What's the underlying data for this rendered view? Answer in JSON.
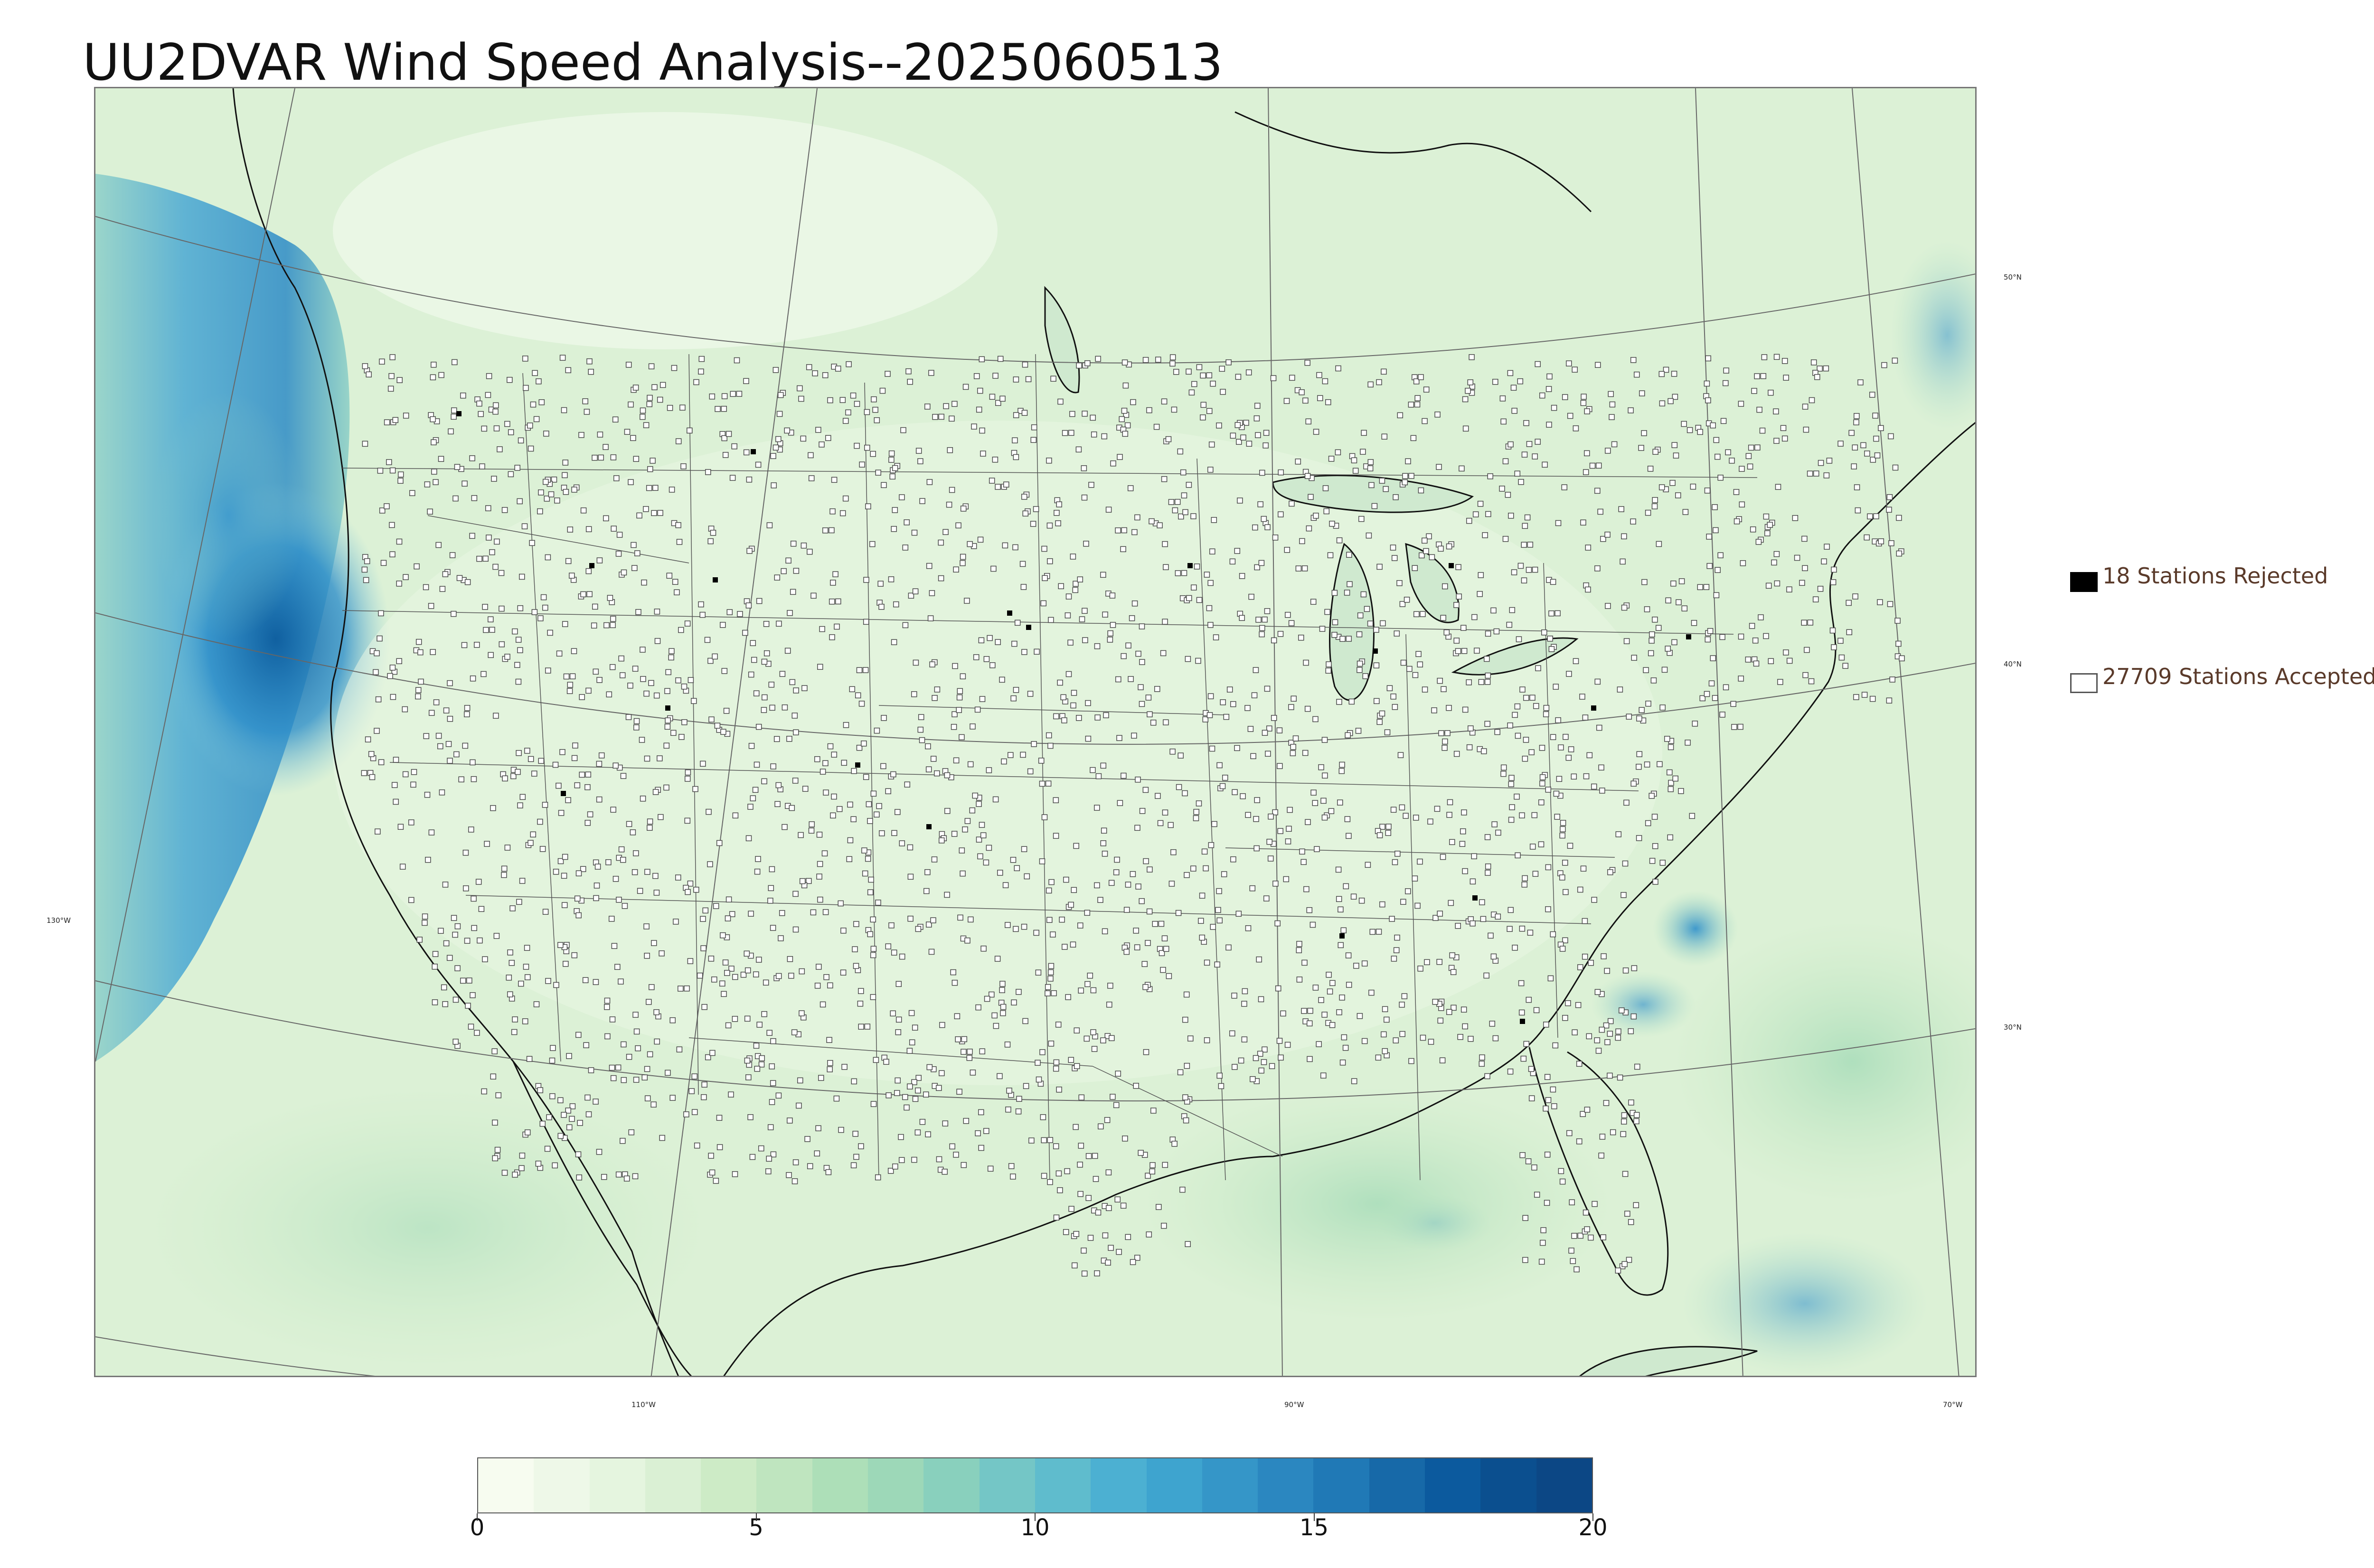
{
  "title": "UU2DVAR Wind Speed Analysis--2025060513",
  "map": {
    "graticule_labels": {
      "lat_50": "50°N",
      "lat_40": "40°N",
      "lat_30": "30°N",
      "lon_130": "130°W",
      "lon_110": "110°W",
      "lon_90": "90°W",
      "lon_70": "70°W"
    }
  },
  "legend": {
    "rejected": {
      "label": "18 Stations Rejected",
      "color": "#000000"
    },
    "accepted": {
      "label": "27709 Stations Accepted",
      "color": "#ffffff"
    }
  },
  "colorbar": {
    "min": 0,
    "max": 20,
    "ticks": [
      "0",
      "5",
      "10",
      "15",
      "20"
    ],
    "colors": [
      "#f7fcf0",
      "#eef8e8",
      "#e5f5df",
      "#daf0d4",
      "#cdebc6",
      "#bfe5bf",
      "#addfb8",
      "#9dd8b8",
      "#89d0bd",
      "#74c6c6",
      "#5fbccd",
      "#4cb0d2",
      "#3ea4cf",
      "#3596c8",
      "#2b87c0",
      "#2079b6",
      "#1769a8",
      "#0c5a9e",
      "#0b4f8f",
      "#0c4785"
    ]
  },
  "colors": {
    "ocean_pacific": "#3f9fd3",
    "land_base": "#e4f4df",
    "station_edge": "#4a4a4a"
  }
}
